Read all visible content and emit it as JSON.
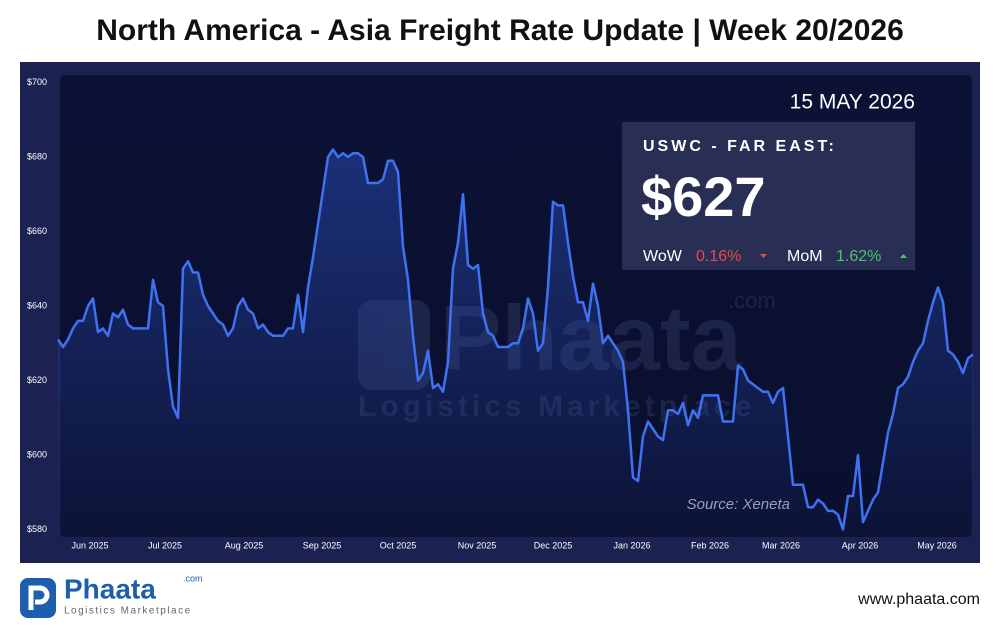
{
  "chart_data": {
    "type": "line",
    "title": "North America - Asia Freight Rate Update | Week 20/2026",
    "color": "#3f72f2",
    "values": [
      631,
      629,
      631,
      634,
      636,
      636,
      640,
      642,
      633,
      634,
      632,
      638,
      637,
      639,
      635,
      634,
      634,
      634,
      634,
      647,
      641,
      640,
      623,
      613,
      610,
      650,
      652,
      649,
      649,
      643,
      640,
      638,
      636,
      635,
      632,
      634,
      640,
      642,
      639,
      638,
      634,
      635,
      633,
      632,
      632,
      632,
      634,
      634,
      643,
      633,
      645,
      653,
      662,
      671,
      680,
      682,
      680,
      681,
      680,
      681,
      681,
      680,
      673,
      673,
      673,
      674,
      679,
      679,
      676,
      656,
      647,
      632,
      620,
      622,
      628,
      618,
      619,
      617,
      625,
      650,
      657,
      670,
      651,
      650,
      651,
      638,
      633,
      632,
      629,
      629,
      629,
      630,
      630,
      634,
      642,
      638,
      628,
      630,
      645,
      668,
      667,
      667,
      657,
      648,
      641,
      641,
      636,
      646,
      640,
      630,
      632,
      630,
      628,
      625,
      612,
      594,
      593,
      605,
      609,
      607,
      605,
      604,
      612,
      612,
      611,
      614,
      608,
      612,
      610,
      616,
      616,
      616,
      616,
      609,
      609,
      609,
      624,
      623,
      620,
      619,
      618,
      617,
      617,
      614,
      617,
      618,
      605,
      592,
      592,
      592,
      586,
      586,
      588,
      587,
      585,
      585,
      584,
      580,
      589,
      589,
      600,
      582,
      585,
      588,
      590,
      598,
      606,
      611,
      618,
      619,
      621,
      625,
      628,
      630,
      636,
      641,
      645,
      641,
      628,
      627,
      625,
      622,
      626,
      627
    ],
    "xlim": [
      0,
      183
    ],
    "xticks": [
      {
        "value": 6.4,
        "label": "Jun 2025"
      },
      {
        "value": 21.4,
        "label": "Jul 2025"
      },
      {
        "value": 37.2,
        "label": "Aug 2025"
      },
      {
        "value": 52.8,
        "label": "Sep 2025"
      },
      {
        "value": 68,
        "label": "Oct 2025"
      },
      {
        "value": 83.8,
        "label": "Nov 2025"
      },
      {
        "value": 99,
        "label": "Dec 2025"
      },
      {
        "value": 114.8,
        "label": "Jan 2026"
      },
      {
        "value": 130.4,
        "label": "Feb 2026"
      },
      {
        "value": 144.6,
        "label": "Mar 2026"
      },
      {
        "value": 160.4,
        "label": "Apr 2026"
      },
      {
        "value": 175.8,
        "label": "May 2026"
      }
    ],
    "ylim": [
      578,
      702
    ],
    "yticks": [
      {
        "value": 580,
        "label": "$580"
      },
      {
        "value": 600,
        "label": "$600"
      },
      {
        "value": 620,
        "label": "$620"
      },
      {
        "value": 640,
        "label": "$640"
      },
      {
        "value": 660,
        "label": "$660"
      },
      {
        "value": 680,
        "label": "$680"
      },
      {
        "value": 700,
        "label": "$700"
      }
    ],
    "info": {
      "date": "15 MAY 2026",
      "route": "USWC - FAR EAST:",
      "price": "$627",
      "wow_label": "WoW",
      "wow": "0.16%",
      "mom_label": "MoM",
      "mom": "1.62%"
    },
    "source": "Source: Xeneta",
    "watermark": {
      "name": "Phaata",
      "suffix": ".com",
      "tagline": "Logistics Marketplace"
    }
  },
  "footer": {
    "logo": "Phaata",
    "logo_suffix": ".com",
    "tagline": "Logistics Marketplace",
    "url": "www.phaata.com"
  }
}
